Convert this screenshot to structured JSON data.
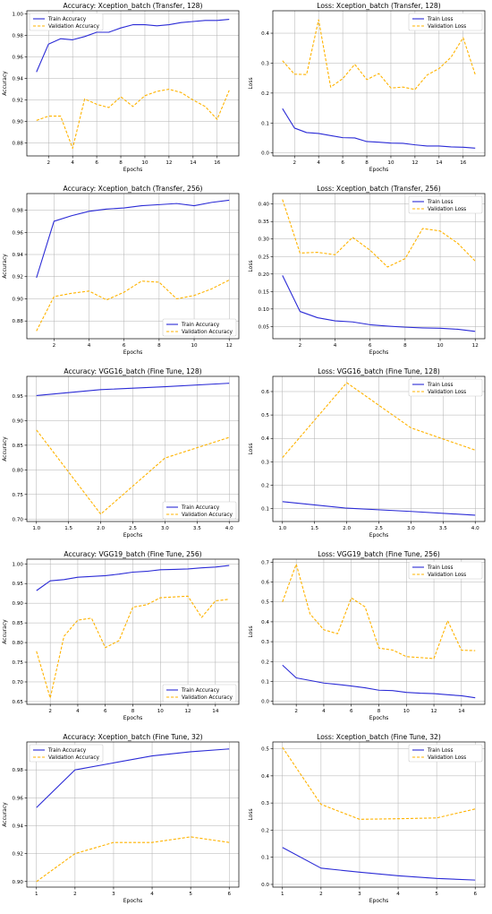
{
  "colors": {
    "train": "#2b2bd6",
    "validation": "#ffb300"
  },
  "chart_data": [
    {
      "type": "line",
      "title": "Accuracy: Xception_batch (Transfer, 128)",
      "xlabel": "Epochs",
      "ylabel": "Accuracy",
      "xlim": [
        0.2,
        17.8
      ],
      "ylim": [
        0.868,
        1.003
      ],
      "xticks": [
        2,
        4,
        6,
        8,
        10,
        12,
        14,
        16
      ],
      "yticks": [
        0.88,
        0.9,
        0.92,
        0.94,
        0.96,
        0.98,
        1.0
      ],
      "grid": true,
      "legend_position": "top-left",
      "x": [
        1,
        2,
        3,
        4,
        5,
        6,
        7,
        8,
        9,
        10,
        11,
        12,
        13,
        14,
        15,
        16,
        17
      ],
      "series": [
        {
          "name": "Train Accuracy",
          "style": "solid",
          "values": [
            0.946,
            0.972,
            0.977,
            0.976,
            0.979,
            0.983,
            0.983,
            0.987,
            0.99,
            0.99,
            0.989,
            0.99,
            0.992,
            0.993,
            0.994,
            0.994,
            0.995
          ]
        },
        {
          "name": "Validation Accuracy",
          "style": "dashed",
          "values": [
            0.901,
            0.905,
            0.905,
            0.875,
            0.921,
            0.916,
            0.913,
            0.923,
            0.914,
            0.924,
            0.928,
            0.93,
            0.927,
            0.92,
            0.914,
            0.902,
            0.929
          ]
        }
      ]
    },
    {
      "type": "line",
      "title": "Loss: Xception_batch (Transfer, 128)",
      "xlabel": "Epochs",
      "ylabel": "Loss",
      "xlim": [
        0.2,
        17.8
      ],
      "ylim": [
        -0.01,
        0.475
      ],
      "xticks": [
        2,
        4,
        6,
        8,
        10,
        12,
        14,
        16
      ],
      "yticks": [
        0.0,
        0.1,
        0.2,
        0.3,
        0.4
      ],
      "grid": true,
      "legend_position": "top-right",
      "x": [
        1,
        2,
        3,
        4,
        5,
        6,
        7,
        8,
        9,
        10,
        11,
        12,
        13,
        14,
        15,
        16,
        17
      ],
      "series": [
        {
          "name": "Train Loss",
          "style": "solid",
          "values": [
            0.148,
            0.083,
            0.068,
            0.065,
            0.058,
            0.051,
            0.05,
            0.038,
            0.036,
            0.033,
            0.032,
            0.027,
            0.023,
            0.023,
            0.02,
            0.019,
            0.016
          ]
        },
        {
          "name": "Validation Loss",
          "style": "dashed",
          "values": [
            0.308,
            0.263,
            0.262,
            0.445,
            0.22,
            0.248,
            0.296,
            0.245,
            0.265,
            0.217,
            0.22,
            0.212,
            0.26,
            0.282,
            0.32,
            0.385,
            0.262
          ]
        }
      ]
    },
    {
      "type": "line",
      "title": "Accuracy: Xception_batch (Transfer, 256)",
      "xlabel": "Epochs",
      "ylabel": "Accuracy",
      "xlim": [
        0.45,
        12.55
      ],
      "ylim": [
        0.864,
        0.995
      ],
      "xticks": [
        2,
        4,
        6,
        8,
        10,
        12
      ],
      "yticks": [
        0.88,
        0.9,
        0.92,
        0.94,
        0.96,
        0.98
      ],
      "grid": true,
      "legend_position": "bottom-right",
      "x": [
        1,
        2,
        3,
        4,
        5,
        6,
        7,
        8,
        9,
        10,
        11,
        12
      ],
      "series": [
        {
          "name": "Train Accuracy",
          "style": "solid",
          "values": [
            0.919,
            0.97,
            0.975,
            0.979,
            0.981,
            0.982,
            0.984,
            0.985,
            0.986,
            0.984,
            0.987,
            0.989
          ]
        },
        {
          "name": "Validation Accuracy",
          "style": "dashed",
          "values": [
            0.871,
            0.902,
            0.905,
            0.907,
            0.899,
            0.906,
            0.916,
            0.915,
            0.9,
            0.903,
            0.909,
            0.917
          ]
        }
      ]
    },
    {
      "type": "line",
      "title": "Loss: Xception_batch (Transfer, 256)",
      "xlabel": "Epochs",
      "ylabel": "Loss",
      "xlim": [
        0.45,
        12.55
      ],
      "ylim": [
        0.015,
        0.43
      ],
      "xticks": [
        2,
        4,
        6,
        8,
        10,
        12
      ],
      "yticks": [
        0.05,
        0.1,
        0.15,
        0.2,
        0.25,
        0.3,
        0.35,
        0.4
      ],
      "grid": true,
      "legend_position": "top-right",
      "x": [
        1,
        2,
        3,
        4,
        5,
        6,
        7,
        8,
        9,
        10,
        11,
        12
      ],
      "series": [
        {
          "name": "Train Loss",
          "style": "solid",
          "values": [
            0.196,
            0.093,
            0.075,
            0.066,
            0.063,
            0.055,
            0.051,
            0.048,
            0.046,
            0.045,
            0.042,
            0.036
          ]
        },
        {
          "name": "Validation Loss",
          "style": "dashed",
          "values": [
            0.413,
            0.26,
            0.262,
            0.255,
            0.305,
            0.268,
            0.22,
            0.244,
            0.33,
            0.323,
            0.288,
            0.237
          ]
        }
      ]
    },
    {
      "type": "line",
      "title": "Accuracy: VGG16_batch (Fine Tune, 128)",
      "xlabel": "Epochs",
      "ylabel": "Accuracy",
      "xlim": [
        0.85,
        4.15
      ],
      "ylim": [
        0.695,
        0.99
      ],
      "xticks": [
        1.0,
        1.5,
        2.0,
        2.5,
        3.0,
        3.5,
        4.0
      ],
      "yticks": [
        0.7,
        0.75,
        0.8,
        0.85,
        0.9,
        0.95
      ],
      "grid": true,
      "legend_position": "bottom-right",
      "x": [
        1,
        2,
        3,
        4
      ],
      "series": [
        {
          "name": "Train Accuracy",
          "style": "solid",
          "values": [
            0.951,
            0.963,
            0.969,
            0.976
          ]
        },
        {
          "name": "Validation Accuracy",
          "style": "dashed",
          "values": [
            0.881,
            0.71,
            0.824,
            0.866
          ]
        }
      ]
    },
    {
      "type": "line",
      "title": "Loss: VGG16_batch (Fine Tune, 128)",
      "xlabel": "Epochs",
      "ylabel": "Loss",
      "xlim": [
        0.85,
        4.15
      ],
      "ylim": [
        0.045,
        0.665
      ],
      "xticks": [
        1.0,
        1.5,
        2.0,
        2.5,
        3.0,
        3.5,
        4.0
      ],
      "yticks": [
        0.1,
        0.2,
        0.3,
        0.4,
        0.5,
        0.6
      ],
      "grid": true,
      "legend_position": "top-right",
      "x": [
        1,
        2,
        3,
        4
      ],
      "series": [
        {
          "name": "Train Loss",
          "style": "solid",
          "values": [
            0.13,
            0.102,
            0.088,
            0.072
          ]
        },
        {
          "name": "Validation Loss",
          "style": "dashed",
          "values": [
            0.318,
            0.638,
            0.445,
            0.35
          ]
        }
      ]
    },
    {
      "type": "line",
      "title": "Accuracy: VGG19_batch (Fine Tune, 256)",
      "xlabel": "Epochs",
      "ylabel": "Accuracy",
      "xlim": [
        0.3,
        15.7
      ],
      "ylim": [
        0.643,
        1.012
      ],
      "xticks": [
        2,
        4,
        6,
        8,
        10,
        12,
        14
      ],
      "yticks": [
        0.65,
        0.7,
        0.75,
        0.8,
        0.85,
        0.9,
        0.95,
        1.0
      ],
      "grid": true,
      "legend_position": "bottom-right",
      "x": [
        1,
        2,
        3,
        4,
        5,
        6,
        7,
        8,
        9,
        10,
        11,
        12,
        13,
        14,
        15
      ],
      "series": [
        {
          "name": "Train Accuracy",
          "style": "solid",
          "values": [
            0.932,
            0.957,
            0.96,
            0.966,
            0.968,
            0.97,
            0.974,
            0.979,
            0.981,
            0.985,
            0.986,
            0.987,
            0.99,
            0.992,
            0.996
          ]
        },
        {
          "name": "Validation Accuracy",
          "style": "dashed",
          "values": [
            0.778,
            0.659,
            0.816,
            0.857,
            0.862,
            0.787,
            0.805,
            0.89,
            0.896,
            0.914,
            0.916,
            0.918,
            0.864,
            0.906,
            0.91
          ]
        }
      ]
    },
    {
      "type": "line",
      "title": "Loss: VGG19_batch (Fine Tune, 256)",
      "xlabel": "Epochs",
      "ylabel": "Loss",
      "xlim": [
        0.3,
        15.7
      ],
      "ylim": [
        -0.015,
        0.715
      ],
      "xticks": [
        2,
        4,
        6,
        8,
        10,
        12,
        14
      ],
      "yticks": [
        0.0,
        0.1,
        0.2,
        0.3,
        0.4,
        0.5,
        0.6,
        0.7
      ],
      "grid": true,
      "legend_position": "top-right",
      "x": [
        1,
        2,
        3,
        4,
        5,
        6,
        7,
        8,
        9,
        10,
        11,
        12,
        13,
        14,
        15
      ],
      "series": [
        {
          "name": "Train Loss",
          "style": "solid",
          "values": [
            0.182,
            0.118,
            0.105,
            0.092,
            0.085,
            0.077,
            0.068,
            0.056,
            0.054,
            0.045,
            0.041,
            0.039,
            0.033,
            0.028,
            0.018
          ]
        },
        {
          "name": "Validation Loss",
          "style": "dashed",
          "values": [
            0.5,
            0.69,
            0.44,
            0.36,
            0.34,
            0.52,
            0.475,
            0.268,
            0.258,
            0.225,
            0.22,
            0.215,
            0.405,
            0.257,
            0.255
          ]
        }
      ]
    },
    {
      "type": "line",
      "title": "Accuracy: Xception_batch (Fine Tune, 32)",
      "xlabel": "Epochs",
      "ylabel": "Accuracy",
      "xlim": [
        0.75,
        6.25
      ],
      "ylim": [
        0.896,
        1.0
      ],
      "xticks": [
        1,
        2,
        3,
        4,
        5,
        6
      ],
      "yticks": [
        0.9,
        0.92,
        0.94,
        0.96,
        0.98
      ],
      "grid": true,
      "legend_position": "top-left",
      "x": [
        1,
        2,
        3,
        4,
        5,
        6
      ],
      "series": [
        {
          "name": "Train Accuracy",
          "style": "solid",
          "values": [
            0.953,
            0.98,
            0.985,
            0.99,
            0.993,
            0.995
          ]
        },
        {
          "name": "Validation Accuracy",
          "style": "dashed",
          "values": [
            0.9,
            0.92,
            0.928,
            0.928,
            0.932,
            0.928
          ]
        }
      ]
    },
    {
      "type": "line",
      "title": "Loss: Xception_batch (Fine Tune, 32)",
      "xlabel": "Epochs",
      "ylabel": "Loss",
      "xlim": [
        0.75,
        6.25
      ],
      "ylim": [
        -0.01,
        0.525
      ],
      "xticks": [
        1,
        2,
        3,
        4,
        5,
        6
      ],
      "yticks": [
        0.0,
        0.1,
        0.2,
        0.3,
        0.4,
        0.5
      ],
      "grid": true,
      "legend_position": "top-right",
      "x": [
        1,
        2,
        3,
        4,
        5,
        6
      ],
      "series": [
        {
          "name": "Train Loss",
          "style": "solid",
          "values": [
            0.136,
            0.06,
            0.045,
            0.032,
            0.022,
            0.016
          ]
        },
        {
          "name": "Validation Loss",
          "style": "dashed",
          "values": [
            0.505,
            0.295,
            0.24,
            0.242,
            0.245,
            0.278
          ]
        }
      ]
    }
  ]
}
